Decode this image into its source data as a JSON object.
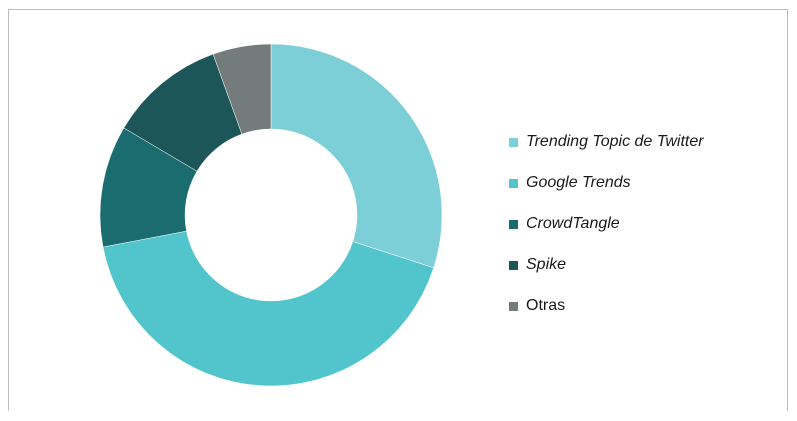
{
  "chart_data": {
    "type": "pie",
    "donut": true,
    "title": "",
    "legend_position": "right",
    "categories": [
      "Trending Topic de Twitter",
      "Google Trends",
      "CrowdTangle",
      "Spike",
      "Otras"
    ],
    "values": [
      30,
      42,
      11.5,
      11,
      5.5
    ],
    "italic": [
      true,
      true,
      true,
      true,
      false
    ],
    "colors": [
      "#7ccfd6",
      "#52c4cb",
      "#1b6c6f",
      "#1c5659",
      "#737b7b"
    ]
  }
}
